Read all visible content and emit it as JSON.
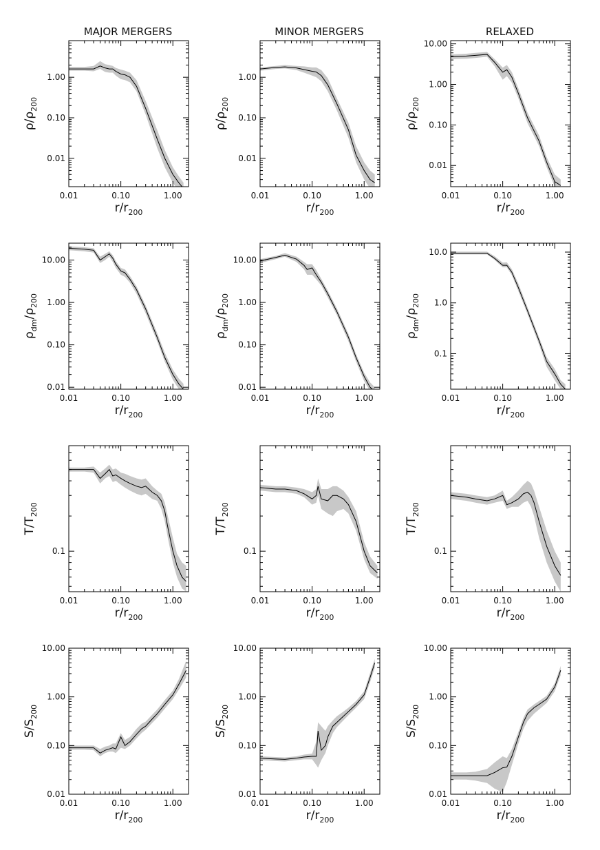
{
  "figure": {
    "colors": {
      "band": "#c8c8c8",
      "line": "#000000"
    },
    "col_titles": [
      "MAJOR MERGERS",
      "MINOR MERGERS",
      "RELAXED"
    ],
    "xlabel": {
      "sym": "r",
      "den": "r",
      "sub": "200"
    },
    "xlim": [
      0.01,
      2.0
    ],
    "xticks": [
      0.01,
      0.1,
      1.0
    ],
    "xtick_labels": [
      "0.01",
      "0.10",
      "1.00"
    ]
  },
  "chart_data": [
    {
      "type": "line",
      "id": "rho-major",
      "column": "MAJOR MERGERS",
      "ylabel": {
        "sym": "ρ",
        "den": "ρ",
        "sub": "200",
        "num_sub": ""
      },
      "ylim": [
        0.002,
        8
      ],
      "yticks": [
        0.01,
        0.1,
        1.0
      ],
      "ytick_labels": [
        "0.01",
        "0.10",
        "1.00"
      ],
      "x": [
        0.01,
        0.02,
        0.03,
        0.04,
        0.05,
        0.06,
        0.07,
        0.08,
        0.1,
        0.12,
        0.15,
        0.2,
        0.3,
        0.5,
        0.7,
        1.0,
        1.3,
        1.6
      ],
      "y": [
        1.6,
        1.6,
        1.6,
        1.9,
        1.7,
        1.6,
        1.6,
        1.4,
        1.2,
        1.15,
        1.0,
        0.6,
        0.17,
        0.03,
        0.01,
        0.004,
        0.0025,
        0.0018
      ],
      "lo": [
        1.45,
        1.45,
        1.4,
        1.6,
        1.35,
        1.3,
        1.3,
        1.1,
        0.9,
        0.85,
        0.75,
        0.45,
        0.12,
        0.018,
        0.006,
        0.0025,
        0.0015,
        0.0012
      ],
      "hi": [
        1.8,
        1.8,
        1.9,
        2.5,
        2.1,
        2.0,
        1.9,
        1.7,
        1.55,
        1.45,
        1.3,
        0.85,
        0.26,
        0.05,
        0.016,
        0.006,
        0.0036,
        0.0025
      ]
    },
    {
      "type": "line",
      "id": "rho-minor",
      "column": "MINOR MERGERS",
      "ylabel": {
        "sym": "ρ",
        "den": "ρ",
        "sub": "200",
        "num_sub": ""
      },
      "ylim": [
        0.002,
        8
      ],
      "yticks": [
        0.01,
        0.1,
        1.0
      ],
      "ytick_labels": [
        "0.01",
        "0.10",
        "1.00"
      ],
      "x": [
        0.01,
        0.02,
        0.03,
        0.05,
        0.07,
        0.1,
        0.12,
        0.15,
        0.2,
        0.3,
        0.5,
        0.7,
        1.0,
        1.3,
        1.6
      ],
      "y": [
        1.6,
        1.75,
        1.8,
        1.7,
        1.55,
        1.4,
        1.35,
        1.1,
        0.65,
        0.22,
        0.05,
        0.012,
        0.005,
        0.003,
        0.0025
      ],
      "lo": [
        1.45,
        1.6,
        1.65,
        1.5,
        1.3,
        1.1,
        1.0,
        0.8,
        0.45,
        0.15,
        0.032,
        0.008,
        0.003,
        0.0018,
        0.0015
      ],
      "hi": [
        1.75,
        1.9,
        2.0,
        1.9,
        1.85,
        1.75,
        1.75,
        1.5,
        0.95,
        0.3,
        0.075,
        0.02,
        0.008,
        0.005,
        0.004
      ]
    },
    {
      "type": "line",
      "id": "rho-relaxed",
      "column": "RELAXED",
      "ylabel": {
        "sym": "ρ",
        "den": "ρ",
        "sub": "200",
        "num_sub": ""
      },
      "ylim": [
        0.003,
        12
      ],
      "yticks": [
        0.01,
        0.1,
        1.0,
        10.0
      ],
      "ytick_labels": [
        "0.01",
        "0.10",
        "1.00",
        "10.00"
      ],
      "x": [
        0.01,
        0.02,
        0.03,
        0.05,
        0.07,
        0.1,
        0.12,
        0.15,
        0.2,
        0.3,
        0.5,
        0.7,
        1.0,
        1.3
      ],
      "y": [
        4.8,
        5.0,
        5.2,
        5.5,
        3.5,
        2.0,
        2.3,
        1.5,
        0.6,
        0.15,
        0.04,
        0.012,
        0.004,
        0.0032
      ],
      "lo": [
        4.2,
        4.3,
        4.5,
        4.8,
        2.8,
        1.3,
        1.6,
        1.1,
        0.45,
        0.11,
        0.03,
        0.009,
        0.003,
        0.0022
      ],
      "hi": [
        5.5,
        5.7,
        6.0,
        6.3,
        4.2,
        2.6,
        3.0,
        2.0,
        0.8,
        0.2,
        0.055,
        0.016,
        0.006,
        0.0045
      ]
    },
    {
      "type": "line",
      "id": "rhodm-major",
      "column": "MAJOR MERGERS",
      "ylabel": {
        "sym": "ρ",
        "den": "ρ",
        "sub": "200",
        "num_sub": "dm"
      },
      "ylim": [
        0.009,
        25
      ],
      "yticks": [
        0.01,
        0.1,
        1.0,
        10.0
      ],
      "ytick_labels": [
        "0.01",
        "0.10",
        "1.00",
        "10.00"
      ],
      "x": [
        0.01,
        0.02,
        0.03,
        0.04,
        0.05,
        0.06,
        0.07,
        0.08,
        0.1,
        0.12,
        0.15,
        0.2,
        0.3,
        0.5,
        0.7,
        1.0,
        1.3,
        1.6
      ],
      "y": [
        19,
        18,
        17,
        10,
        12,
        14,
        11,
        8,
        5.5,
        5,
        3.5,
        2,
        0.7,
        0.15,
        0.05,
        0.02,
        0.012,
        0.009
      ],
      "lo": [
        17,
        16,
        15,
        8.5,
        10,
        12,
        9,
        6.5,
        4.5,
        4,
        2.9,
        1.6,
        0.55,
        0.12,
        0.04,
        0.015,
        0.009,
        0.007
      ],
      "hi": [
        21,
        20,
        19,
        12,
        14,
        16,
        13,
        9.5,
        6.5,
        6,
        4.2,
        2.4,
        0.85,
        0.19,
        0.065,
        0.026,
        0.016,
        0.012
      ]
    },
    {
      "type": "line",
      "id": "rhodm-minor",
      "column": "MINOR MERGERS",
      "ylabel": {
        "sym": "ρ",
        "den": "ρ",
        "sub": "200",
        "num_sub": "dm"
      },
      "ylim": [
        0.009,
        25
      ],
      "yticks": [
        0.01,
        0.1,
        1.0,
        10.0
      ],
      "ytick_labels": [
        "0.01",
        "0.10",
        "1.00",
        "10.00"
      ],
      "x": [
        0.01,
        0.02,
        0.03,
        0.05,
        0.07,
        0.08,
        0.1,
        0.12,
        0.15,
        0.2,
        0.3,
        0.5,
        0.7,
        1.0,
        1.3,
        1.6
      ],
      "y": [
        9.5,
        11.5,
        13,
        10.5,
        7.5,
        6,
        6.5,
        4.5,
        3,
        1.6,
        0.6,
        0.15,
        0.05,
        0.018,
        0.01,
        0.008
      ],
      "lo": [
        8.5,
        10.5,
        12,
        9,
        6,
        4.5,
        4.5,
        3.5,
        2.5,
        1.3,
        0.5,
        0.12,
        0.04,
        0.014,
        0.008,
        0.006
      ],
      "hi": [
        10.5,
        12.5,
        14.5,
        12,
        9,
        8,
        8,
        5.8,
        3.6,
        1.9,
        0.72,
        0.18,
        0.06,
        0.022,
        0.013,
        0.01
      ]
    },
    {
      "type": "line",
      "id": "rhodm-relaxed",
      "column": "RELAXED",
      "ylabel": {
        "sym": "ρ",
        "den": "ρ",
        "sub": "200",
        "num_sub": "dm"
      },
      "ylim": [
        0.02,
        15
      ],
      "yticks": [
        0.1,
        1.0,
        10.0
      ],
      "ytick_labels": [
        "0.1",
        "1.0",
        "10.0"
      ],
      "x": [
        0.01,
        0.02,
        0.03,
        0.05,
        0.07,
        0.1,
        0.12,
        0.15,
        0.2,
        0.3,
        0.5,
        0.7,
        1.0,
        1.3,
        1.6
      ],
      "y": [
        9.5,
        9.5,
        9.5,
        9.5,
        7.5,
        5.5,
        5.5,
        4,
        2,
        0.7,
        0.18,
        0.07,
        0.04,
        0.025,
        0.02
      ],
      "lo": [
        9,
        9,
        9,
        9,
        7,
        5,
        5,
        3.5,
        1.7,
        0.6,
        0.15,
        0.055,
        0.03,
        0.02,
        0.016
      ],
      "hi": [
        10.2,
        10.2,
        10.2,
        10.2,
        8.3,
        6.2,
        6.3,
        4.6,
        2.4,
        0.82,
        0.21,
        0.085,
        0.05,
        0.03,
        0.025
      ]
    },
    {
      "type": "line",
      "id": "t-major",
      "column": "MAJOR MERGERS",
      "ylabel": {
        "sym": "T",
        "den": "T",
        "sub": "200",
        "num_sub": ""
      },
      "ylim": [
        0.045,
        0.8
      ],
      "yticks": [
        0.1
      ],
      "ytick_labels": [
        "0.1"
      ],
      "x": [
        0.01,
        0.02,
        0.03,
        0.04,
        0.05,
        0.06,
        0.07,
        0.08,
        0.1,
        0.12,
        0.15,
        0.2,
        0.25,
        0.3,
        0.4,
        0.5,
        0.6,
        0.7,
        0.8,
        1.0,
        1.2,
        1.5,
        1.8
      ],
      "y": [
        0.5,
        0.5,
        0.5,
        0.42,
        0.46,
        0.5,
        0.44,
        0.45,
        0.42,
        0.4,
        0.38,
        0.36,
        0.35,
        0.36,
        0.32,
        0.3,
        0.27,
        0.22,
        0.16,
        0.1,
        0.075,
        0.06,
        0.055
      ],
      "lo": [
        0.48,
        0.48,
        0.47,
        0.38,
        0.42,
        0.44,
        0.39,
        0.4,
        0.37,
        0.35,
        0.33,
        0.31,
        0.3,
        0.31,
        0.28,
        0.27,
        0.23,
        0.18,
        0.13,
        0.08,
        0.06,
        0.048,
        0.045
      ],
      "hi": [
        0.52,
        0.52,
        0.53,
        0.47,
        0.51,
        0.55,
        0.5,
        0.51,
        0.47,
        0.46,
        0.44,
        0.42,
        0.41,
        0.42,
        0.36,
        0.33,
        0.31,
        0.26,
        0.2,
        0.13,
        0.095,
        0.08,
        0.075
      ]
    },
    {
      "type": "line",
      "id": "t-minor",
      "column": "MINOR MERGERS",
      "ylabel": {
        "sym": "T",
        "den": "T",
        "sub": "200",
        "num_sub": ""
      },
      "ylim": [
        0.045,
        0.8
      ],
      "yticks": [
        0.1
      ],
      "ytick_labels": [
        "0.1"
      ],
      "x": [
        0.01,
        0.02,
        0.03,
        0.05,
        0.07,
        0.1,
        0.12,
        0.13,
        0.15,
        0.2,
        0.25,
        0.3,
        0.4,
        0.5,
        0.7,
        1.0,
        1.3,
        1.8
      ],
      "y": [
        0.35,
        0.34,
        0.34,
        0.33,
        0.31,
        0.28,
        0.3,
        0.36,
        0.28,
        0.27,
        0.3,
        0.3,
        0.28,
        0.25,
        0.18,
        0.1,
        0.075,
        0.065
      ],
      "lo": [
        0.33,
        0.32,
        0.32,
        0.31,
        0.29,
        0.25,
        0.26,
        0.3,
        0.23,
        0.21,
        0.2,
        0.22,
        0.23,
        0.21,
        0.15,
        0.085,
        0.065,
        0.058
      ],
      "hi": [
        0.37,
        0.36,
        0.36,
        0.35,
        0.34,
        0.32,
        0.34,
        0.42,
        0.34,
        0.34,
        0.36,
        0.36,
        0.33,
        0.29,
        0.22,
        0.12,
        0.09,
        0.075
      ]
    },
    {
      "type": "line",
      "id": "t-relaxed",
      "column": "RELAXED",
      "ylabel": {
        "sym": "T",
        "den": "T",
        "sub": "200",
        "num_sub": ""
      },
      "ylim": [
        0.045,
        0.8
      ],
      "yticks": [
        0.1
      ],
      "ytick_labels": [
        "0.1"
      ],
      "x": [
        0.01,
        0.02,
        0.03,
        0.05,
        0.07,
        0.1,
        0.12,
        0.15,
        0.2,
        0.25,
        0.3,
        0.35,
        0.4,
        0.5,
        0.7,
        1.0,
        1.3
      ],
      "y": [
        0.3,
        0.29,
        0.28,
        0.27,
        0.28,
        0.3,
        0.25,
        0.26,
        0.28,
        0.31,
        0.32,
        0.3,
        0.26,
        0.18,
        0.11,
        0.075,
        0.062
      ],
      "lo": [
        0.28,
        0.27,
        0.26,
        0.25,
        0.26,
        0.27,
        0.23,
        0.24,
        0.24,
        0.26,
        0.27,
        0.24,
        0.2,
        0.13,
        0.08,
        0.055,
        0.045
      ],
      "hi": [
        0.32,
        0.31,
        0.3,
        0.29,
        0.3,
        0.33,
        0.27,
        0.29,
        0.33,
        0.37,
        0.4,
        0.38,
        0.33,
        0.24,
        0.15,
        0.1,
        0.08
      ]
    },
    {
      "type": "line",
      "id": "s-major",
      "column": "MAJOR MERGERS",
      "ylabel": {
        "sym": "S",
        "den": "S",
        "sub": "200",
        "num_sub": ""
      },
      "ylim": [
        0.01,
        10
      ],
      "yticks": [
        0.01,
        0.1,
        1.0,
        10.0
      ],
      "ytick_labels": [
        "0.01",
        "0.10",
        "1.00",
        "10.00"
      ],
      "x": [
        0.01,
        0.02,
        0.03,
        0.04,
        0.05,
        0.06,
        0.07,
        0.08,
        0.1,
        0.12,
        0.15,
        0.2,
        0.25,
        0.3,
        0.4,
        0.5,
        0.7,
        1.0,
        1.3,
        1.8
      ],
      "y": [
        0.09,
        0.09,
        0.09,
        0.07,
        0.08,
        0.085,
        0.09,
        0.085,
        0.15,
        0.1,
        0.12,
        0.17,
        0.22,
        0.25,
        0.35,
        0.45,
        0.7,
        1.1,
        1.8,
        3.5
      ],
      "lo": [
        0.082,
        0.082,
        0.08,
        0.06,
        0.07,
        0.075,
        0.075,
        0.07,
        0.09,
        0.085,
        0.1,
        0.14,
        0.18,
        0.21,
        0.29,
        0.37,
        0.57,
        0.9,
        1.4,
        2.5
      ],
      "hi": [
        0.1,
        0.1,
        0.1,
        0.085,
        0.095,
        0.1,
        0.11,
        0.11,
        0.18,
        0.13,
        0.15,
        0.22,
        0.28,
        0.31,
        0.43,
        0.55,
        0.86,
        1.35,
        2.3,
        5.5
      ]
    },
    {
      "type": "line",
      "id": "s-minor",
      "column": "MINOR MERGERS",
      "ylabel": {
        "sym": "S",
        "den": "S",
        "sub": "200",
        "num_sub": ""
      },
      "ylim": [
        0.01,
        10
      ],
      "yticks": [
        0.01,
        0.1,
        1.0,
        10.0
      ],
      "ytick_labels": [
        "0.01",
        "0.10",
        "1.00",
        "10.00"
      ],
      "x": [
        0.01,
        0.02,
        0.03,
        0.05,
        0.07,
        0.1,
        0.12,
        0.13,
        0.15,
        0.18,
        0.2,
        0.25,
        0.3,
        0.4,
        0.5,
        0.7,
        1.0,
        1.3,
        1.6
      ],
      "y": [
        0.055,
        0.053,
        0.052,
        0.055,
        0.058,
        0.06,
        0.06,
        0.2,
        0.08,
        0.1,
        0.15,
        0.25,
        0.3,
        0.4,
        0.5,
        0.7,
        1.1,
        2.5,
        5.0
      ],
      "lo": [
        0.05,
        0.048,
        0.047,
        0.05,
        0.052,
        0.052,
        0.04,
        0.035,
        0.05,
        0.07,
        0.1,
        0.18,
        0.24,
        0.33,
        0.42,
        0.6,
        0.9,
        2.0,
        4.0
      ],
      "hi": [
        0.06,
        0.058,
        0.057,
        0.06,
        0.065,
        0.068,
        0.12,
        0.3,
        0.25,
        0.2,
        0.25,
        0.33,
        0.4,
        0.5,
        0.6,
        0.82,
        1.3,
        3.1,
        6.0
      ]
    },
    {
      "type": "line",
      "id": "s-relaxed",
      "column": "RELAXED",
      "ylabel": {
        "sym": "S",
        "den": "S",
        "sub": "200",
        "num_sub": ""
      },
      "ylim": [
        0.01,
        10
      ],
      "yticks": [
        0.01,
        0.1,
        1.0,
        10.0
      ],
      "ytick_labels": [
        "0.01",
        "0.10",
        "1.00",
        "10.00"
      ],
      "x": [
        0.01,
        0.02,
        0.03,
        0.05,
        0.07,
        0.1,
        0.12,
        0.15,
        0.2,
        0.25,
        0.3,
        0.4,
        0.5,
        0.7,
        1.0,
        1.3
      ],
      "y": [
        0.024,
        0.024,
        0.024,
        0.024,
        0.028,
        0.035,
        0.036,
        0.06,
        0.15,
        0.3,
        0.45,
        0.6,
        0.7,
        0.9,
        1.6,
        3.5
      ],
      "lo": [
        0.02,
        0.02,
        0.019,
        0.017,
        0.013,
        0.011,
        0.018,
        0.04,
        0.11,
        0.22,
        0.32,
        0.45,
        0.55,
        0.75,
        1.3,
        2.8
      ],
      "hi": [
        0.028,
        0.028,
        0.029,
        0.033,
        0.045,
        0.06,
        0.055,
        0.085,
        0.19,
        0.37,
        0.55,
        0.7,
        0.82,
        1.05,
        1.9,
        4.3
      ]
    }
  ]
}
